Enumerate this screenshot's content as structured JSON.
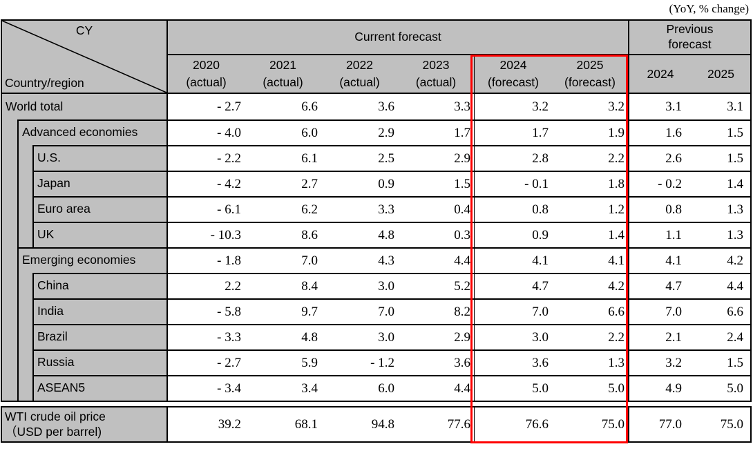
{
  "caption": "(YoY, % change)",
  "corner": {
    "top_label": "CY",
    "bottom_label": "Country/region"
  },
  "header": {
    "current_forecast": "Current forecast",
    "previous_forecast": "Previous forecast",
    "current_columns": [
      {
        "year": "2020",
        "note": "(actual)"
      },
      {
        "year": "2021",
        "note": "(actual)"
      },
      {
        "year": "2022",
        "note": "(actual)"
      },
      {
        "year": "2023",
        "note": "(actual)"
      },
      {
        "year": "2024",
        "note": "(forecast)"
      },
      {
        "year": "2025",
        "note": "(forecast)"
      }
    ],
    "previous_columns": [
      {
        "year": "2024"
      },
      {
        "year": "2025"
      }
    ]
  },
  "rows": [
    {
      "label": "World total",
      "level": 0,
      "values": [
        "- 2.7",
        "6.6",
        "3.6",
        "3.3",
        "3.2",
        "3.2",
        "3.1",
        "3.1"
      ]
    },
    {
      "label": "Advanced economies",
      "level": 1,
      "values": [
        "- 4.0",
        "6.0",
        "2.9",
        "1.7",
        "1.7",
        "1.9",
        "1.6",
        "1.5"
      ]
    },
    {
      "label": "U.S.",
      "level": 2,
      "values": [
        "- 2.2",
        "6.1",
        "2.5",
        "2.9",
        "2.8",
        "2.2",
        "2.6",
        "1.5"
      ]
    },
    {
      "label": "Japan",
      "level": 2,
      "values": [
        "- 4.2",
        "2.7",
        "0.9",
        "1.5",
        "- 0.1",
        "1.8",
        "- 0.2",
        "1.4"
      ]
    },
    {
      "label": "Euro area",
      "level": 2,
      "values": [
        "- 6.1",
        "6.2",
        "3.3",
        "0.4",
        "0.8",
        "1.2",
        "0.8",
        "1.3"
      ]
    },
    {
      "label": "UK",
      "level": 2,
      "values": [
        "- 10.3",
        "8.6",
        "4.8",
        "0.3",
        "0.9",
        "1.4",
        "1.1",
        "1.3"
      ]
    },
    {
      "label": "Emerging economies",
      "level": 1,
      "values": [
        "- 1.8",
        "7.0",
        "4.3",
        "4.4",
        "4.1",
        "4.1",
        "4.1",
        "4.2"
      ]
    },
    {
      "label": "China",
      "level": 2,
      "values": [
        "2.2",
        "8.4",
        "3.0",
        "5.2",
        "4.7",
        "4.2",
        "4.7",
        "4.4"
      ]
    },
    {
      "label": "India",
      "level": 2,
      "values": [
        "- 5.8",
        "9.7",
        "7.0",
        "8.2",
        "7.0",
        "6.6",
        "7.0",
        "6.6"
      ]
    },
    {
      "label": "Brazil",
      "level": 2,
      "values": [
        "- 3.3",
        "4.8",
        "3.0",
        "2.9",
        "3.0",
        "2.2",
        "2.1",
        "2.4"
      ]
    },
    {
      "label": "Russia",
      "level": 2,
      "values": [
        "- 2.7",
        "5.9",
        "- 1.2",
        "3.6",
        "3.6",
        "1.3",
        "3.2",
        "1.5"
      ]
    },
    {
      "label": "ASEAN5",
      "level": 2,
      "values": [
        "- 3.4",
        "3.4",
        "6.0",
        "4.4",
        "5.0",
        "5.0",
        "4.9",
        "5.0"
      ]
    }
  ],
  "wti": {
    "label_line1": "WTI crude oil price",
    "label_line2": "（USD per barrel)",
    "values": [
      "39.2",
      "68.1",
      "94.8",
      "77.6",
      "76.6",
      "75.0",
      "77.0",
      "75.0"
    ]
  },
  "colors": {
    "header_bg": "#c0c0c0",
    "border": "#000000",
    "highlight": "#ff0000",
    "background": "#ffffff",
    "text": "#000000"
  }
}
